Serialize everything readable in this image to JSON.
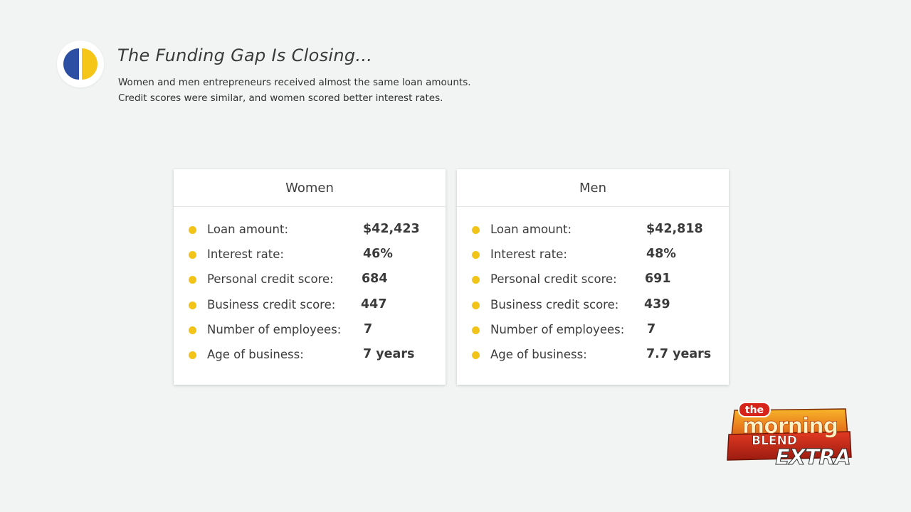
{
  "header": {
    "title": "The Funding Gap Is Closing...",
    "subtitle_line1": "Women and men entrepreneurs received almost the same loan amounts.",
    "subtitle_line2": "Credit scores were similar, and women scored better interest rates."
  },
  "colors": {
    "accent_yellow": "#f2c41a",
    "logo_blue": "#2d4fa3",
    "logo_yellow": "#f5c518"
  },
  "women": {
    "title": "Women",
    "rows": [
      {
        "label": "Loan amount:",
        "value": "$42,423"
      },
      {
        "label": "Interest rate:",
        "value": "46%"
      },
      {
        "label": "Personal credit score:",
        "value": "684"
      },
      {
        "label": "Business credit score:",
        "value": "447"
      },
      {
        "label": "Number of employees:",
        "value": "7"
      },
      {
        "label": "Age of business:",
        "value": "7 years"
      }
    ]
  },
  "men": {
    "title": "Men",
    "rows": [
      {
        "label": "Loan amount:",
        "value": "$42,818"
      },
      {
        "label": "Interest rate:",
        "value": "48%"
      },
      {
        "label": "Personal credit score:",
        "value": "691"
      },
      {
        "label": "Business credit score:",
        "value": "439"
      },
      {
        "label": "Number of employees:",
        "value": "7"
      },
      {
        "label": "Age of business:",
        "value": "7.7 years"
      }
    ]
  },
  "bug": {
    "line1": "the",
    "line2": "morning",
    "line3": "BLEND",
    "line4": "EXTRA"
  }
}
